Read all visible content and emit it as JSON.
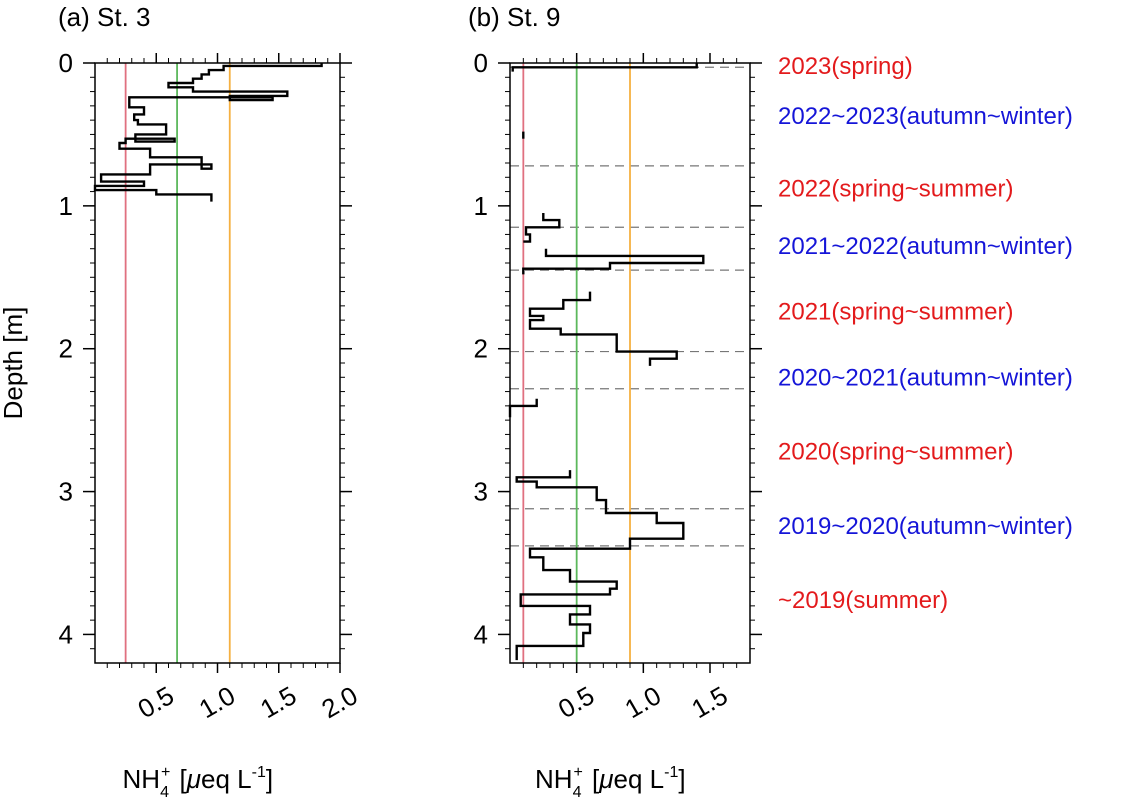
{
  "chart_data": [
    {
      "type": "line",
      "title": "(a) St. 3",
      "ylabel": "Depth [m]",
      "xlabel_parts": [
        "NH",
        "4",
        "+",
        " [",
        "μ",
        "eq L",
        "-1",
        "]"
      ],
      "xlim": [
        0,
        2.0
      ],
      "ylim": [
        4.2,
        0
      ],
      "x_tick_labels": [
        "0.5",
        "1.0",
        "1.5",
        "2.0"
      ],
      "x_tick_values": [
        0.5,
        1.0,
        1.5,
        2.0
      ],
      "y_tick_labels": [
        "0",
        "1",
        "2",
        "3",
        "4"
      ],
      "y_tick_values": [
        0,
        1,
        2,
        3,
        4
      ],
      "reference_lines": [
        {
          "value": 0.25,
          "color": "#e07080"
        },
        {
          "value": 0.67,
          "color": "#5cb85c"
        },
        {
          "value": 1.1,
          "color": "#f5b041"
        }
      ],
      "series": [
        {
          "color": "#000000",
          "points": [
            [
              1.85,
              0.0
            ],
            [
              1.85,
              0.02
            ],
            [
              1.05,
              0.02
            ],
            [
              1.05,
              0.05
            ],
            [
              0.93,
              0.05
            ],
            [
              0.93,
              0.08
            ],
            [
              0.87,
              0.08
            ],
            [
              0.87,
              0.11
            ],
            [
              0.8,
              0.11
            ],
            [
              0.8,
              0.14
            ],
            [
              0.6,
              0.14
            ],
            [
              0.6,
              0.17
            ],
            [
              0.8,
              0.17
            ],
            [
              0.8,
              0.2
            ],
            [
              1.57,
              0.2
            ],
            [
              1.57,
              0.23
            ],
            [
              1.1,
              0.23
            ],
            [
              1.1,
              0.26
            ],
            [
              1.45,
              0.26
            ],
            [
              1.45,
              0.24
            ],
            [
              0.28,
              0.24
            ],
            [
              0.28,
              0.31
            ],
            [
              0.4,
              0.31
            ],
            [
              0.4,
              0.36
            ],
            [
              0.32,
              0.36
            ],
            [
              0.32,
              0.4
            ],
            [
              0.35,
              0.4
            ],
            [
              0.35,
              0.43
            ],
            [
              0.58,
              0.43
            ],
            [
              0.58,
              0.5
            ],
            [
              0.33,
              0.5
            ],
            [
              0.33,
              0.55
            ],
            [
              0.65,
              0.55
            ],
            [
              0.65,
              0.53
            ],
            [
              0.25,
              0.53
            ],
            [
              0.25,
              0.56
            ],
            [
              0.2,
              0.56
            ],
            [
              0.2,
              0.6
            ],
            [
              0.2,
              0.6
            ],
            [
              0.2,
              0.6
            ],
            [
              0.45,
              0.6
            ],
            [
              0.45,
              0.66
            ],
            [
              0.87,
              0.66
            ],
            [
              0.87,
              0.74
            ],
            [
              0.95,
              0.74
            ],
            [
              0.95,
              0.71
            ],
            [
              0.45,
              0.71
            ],
            [
              0.45,
              0.78
            ],
            [
              0.05,
              0.78
            ],
            [
              0.05,
              0.83
            ],
            [
              0.4,
              0.83
            ],
            [
              0.4,
              0.86
            ],
            [
              0.0,
              0.86
            ],
            [
              0.0,
              0.89
            ],
            [
              0.5,
              0.89
            ],
            [
              0.5,
              0.92
            ],
            [
              0.95,
              0.92
            ],
            [
              0.95,
              0.97
            ]
          ]
        }
      ]
    },
    {
      "type": "line",
      "title": "(b) St. 9",
      "xlabel_parts": [
        "NH",
        "4",
        "+",
        " [",
        "μ",
        "eq L",
        "-1",
        "]"
      ],
      "xlim": [
        0,
        1.8
      ],
      "ylim": [
        4.2,
        0
      ],
      "x_tick_labels": [
        "0.5",
        "1.0",
        "1.5"
      ],
      "x_tick_values": [
        0.5,
        1.0,
        1.5
      ],
      "y_tick_labels": [
        "0",
        "1",
        "2",
        "3",
        "4"
      ],
      "y_tick_values": [
        0,
        1,
        2,
        3,
        4
      ],
      "reference_lines": [
        {
          "value": 0.1,
          "color": "#e07080"
        },
        {
          "value": 0.5,
          "color": "#5cb85c"
        },
        {
          "value": 0.9,
          "color": "#f5b041"
        }
      ],
      "season_boundaries": [
        0.03,
        0.72,
        1.15,
        1.45,
        2.02,
        2.28,
        3.12,
        3.38
      ],
      "series": [
        {
          "color": "#000000",
          "points": [
            [
              1.4,
              0.0
            ],
            [
              1.4,
              0.03
            ],
            [
              0.02,
              0.03
            ],
            [
              0.02,
              0.06
            ]
          ]
        },
        {
          "color": "#000000",
          "points": [
            [
              0.1,
              0.48
            ],
            [
              0.1,
              0.53
            ]
          ]
        },
        {
          "color": "#000000",
          "points": [
            [
              0.25,
              1.05
            ],
            [
              0.25,
              1.1
            ],
            [
              0.37,
              1.1
            ],
            [
              0.37,
              1.15
            ],
            [
              0.12,
              1.15
            ],
            [
              0.12,
              1.2
            ],
            [
              0.15,
              1.2
            ],
            [
              0.15,
              1.25
            ],
            [
              0.1,
              1.25
            ]
          ]
        },
        {
          "color": "#000000",
          "points": [
            [
              0.27,
              1.3
            ],
            [
              0.27,
              1.35
            ],
            [
              1.45,
              1.35
            ],
            [
              1.45,
              1.4
            ],
            [
              0.75,
              1.4
            ],
            [
              0.75,
              1.44
            ],
            [
              0.1,
              1.44
            ],
            [
              0.1,
              1.48
            ]
          ]
        },
        {
          "color": "#000000",
          "points": [
            [
              0.6,
              1.6
            ],
            [
              0.6,
              1.66
            ],
            [
              0.4,
              1.66
            ],
            [
              0.4,
              1.72
            ],
            [
              0.15,
              1.72
            ],
            [
              0.15,
              1.77
            ],
            [
              0.25,
              1.77
            ],
            [
              0.25,
              1.8
            ],
            [
              0.15,
              1.8
            ],
            [
              0.15,
              1.86
            ],
            [
              0.38,
              1.86
            ],
            [
              0.38,
              1.9
            ],
            [
              0.8,
              1.9
            ],
            [
              0.8,
              2.02
            ],
            [
              1.25,
              2.02
            ],
            [
              1.25,
              2.07
            ],
            [
              1.05,
              2.07
            ],
            [
              1.05,
              2.12
            ]
          ]
        },
        {
          "color": "#000000",
          "points": [
            [
              0.2,
              2.35
            ],
            [
              0.2,
              2.4
            ],
            [
              0.0,
              2.4
            ],
            [
              0.0,
              2.48
            ]
          ]
        },
        {
          "color": "#000000",
          "points": [
            [
              0.45,
              2.85
            ],
            [
              0.45,
              2.9
            ],
            [
              0.05,
              2.9
            ],
            [
              0.05,
              2.93
            ],
            [
              0.2,
              2.93
            ],
            [
              0.2,
              2.97
            ],
            [
              0.65,
              2.97
            ],
            [
              0.65,
              3.06
            ],
            [
              0.72,
              3.06
            ],
            [
              0.72,
              3.15
            ],
            [
              1.1,
              3.15
            ],
            [
              1.1,
              3.22
            ],
            [
              1.3,
              3.22
            ],
            [
              1.3,
              3.33
            ],
            [
              0.9,
              3.33
            ],
            [
              0.9,
              3.4
            ],
            [
              0.15,
              3.4
            ],
            [
              0.15,
              3.46
            ],
            [
              0.25,
              3.46
            ],
            [
              0.25,
              3.55
            ],
            [
              0.45,
              3.55
            ],
            [
              0.45,
              3.63
            ],
            [
              0.8,
              3.63
            ],
            [
              0.8,
              3.68
            ],
            [
              0.75,
              3.68
            ],
            [
              0.75,
              3.72
            ],
            [
              0.08,
              3.72
            ],
            [
              0.08,
              3.8
            ],
            [
              0.6,
              3.8
            ],
            [
              0.6,
              3.86
            ],
            [
              0.45,
              3.86
            ],
            [
              0.45,
              3.93
            ],
            [
              0.6,
              3.93
            ],
            [
              0.6,
              3.99
            ],
            [
              0.55,
              3.99
            ],
            [
              0.55,
              4.08
            ],
            [
              0.05,
              4.08
            ],
            [
              0.05,
              4.18
            ]
          ]
        }
      ]
    }
  ],
  "season_labels": [
    {
      "text": "2023(spring)",
      "color": "#e31a1c",
      "depth": 0.02
    },
    {
      "text": "2022~2023(autumn~winter)",
      "color": "#1515d8",
      "depth": 0.37
    },
    {
      "text": "2022(spring~summer)",
      "color": "#e31a1c",
      "depth": 0.88
    },
    {
      "text": "2021~2022(autumn~winter)",
      "color": "#1515d8",
      "depth": 1.28
    },
    {
      "text": "2021(spring~summer)",
      "color": "#e31a1c",
      "depth": 1.74
    },
    {
      "text": "2020~2021(autumn~winter)",
      "color": "#1515d8",
      "depth": 2.2
    },
    {
      "text": "2020(spring~summer)",
      "color": "#e31a1c",
      "depth": 2.72
    },
    {
      "text": "2019~2020(autumn~winter)",
      "color": "#1515d8",
      "depth": 3.24
    },
    {
      "text": "~2019(summer)",
      "color": "#e31a1c",
      "depth": 3.76
    }
  ]
}
